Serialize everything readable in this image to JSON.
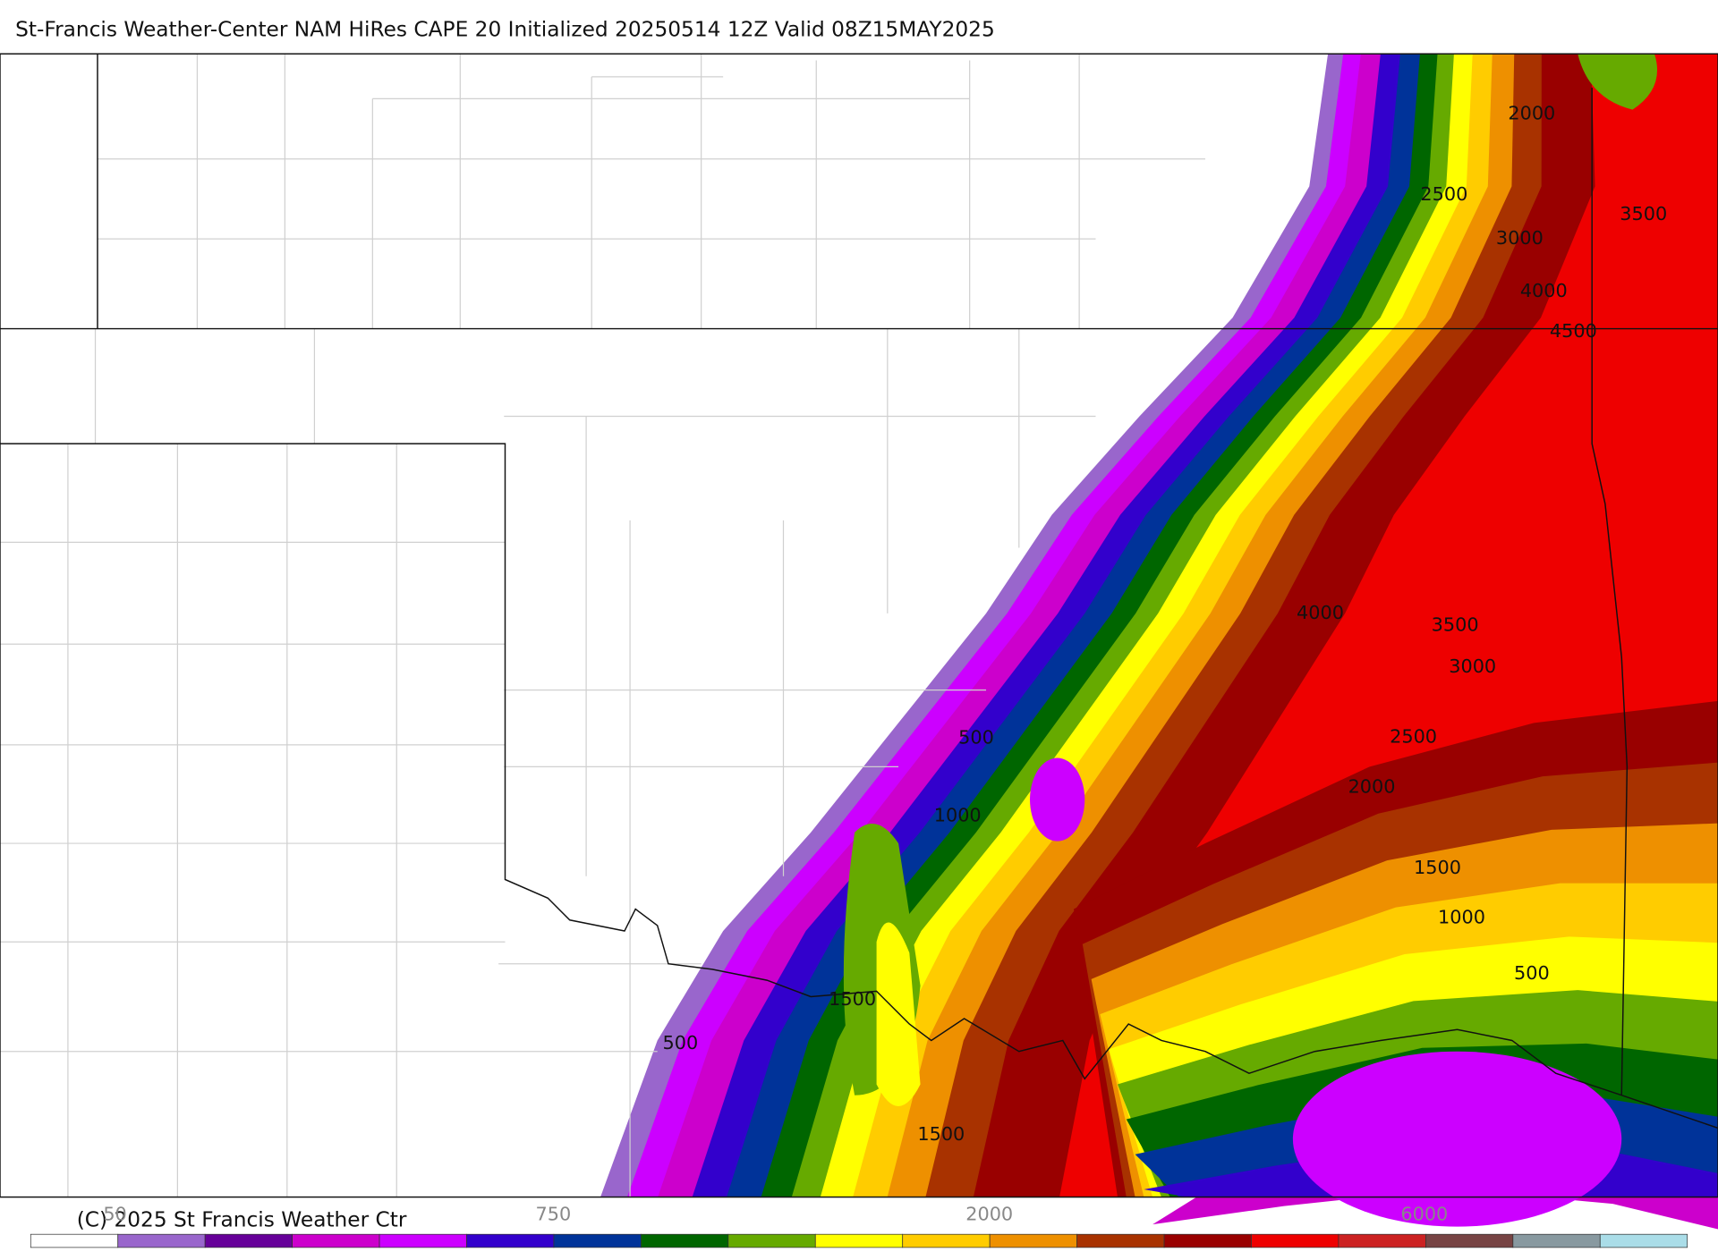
{
  "header": {
    "title": "St-Francis Weather-Center NAM HiRes CAPE  20 Initialized 20250514 12Z Valid 08Z15MAY2025"
  },
  "map": {
    "contour_labels": [
      2000,
      2500,
      3500,
      3000,
      4000,
      4500,
      4000,
      3500,
      3000,
      2500,
      2000,
      1500,
      1000,
      500,
      500,
      1000,
      1500,
      500,
      1500
    ]
  },
  "colorbar": {
    "labels": [
      "50",
      "750",
      "2000",
      "6000"
    ],
    "colors": [
      "#ffffff",
      "#9966cc",
      "#660099",
      "#cc00cc",
      "#cc00ff",
      "#3300cc",
      "#003399",
      "#006600",
      "#66aa00",
      "#ffff00",
      "#ffcc00",
      "#ee9000",
      "#a83200",
      "#990000",
      "#ee0000",
      "#cc2222",
      "#774444",
      "#8899a0",
      "#aadde8"
    ]
  },
  "footer": {
    "copyright": "(C) 2025 St Francis Weather Ctr"
  }
}
